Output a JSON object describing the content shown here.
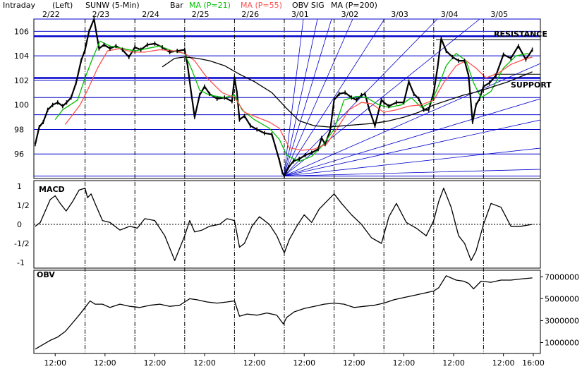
{
  "header": {
    "mode": "Intraday",
    "axis_side": "(Left)",
    "symbol": "SUNW (5-Min)",
    "style": "Bar",
    "ma21_label": "MA (P=21)",
    "ma55_label": "MA (P=55)",
    "obv_sig_label": "OBV SIG",
    "ma200_label": "MA (P=200)"
  },
  "colors": {
    "price": "#000000",
    "ma21": "#00c000",
    "ma55": "#ff5050",
    "ma200": "#000000",
    "fan_lines": "#0000cc",
    "grid": "#0000cc"
  },
  "chart_data": [
    {
      "type": "line",
      "panel": "price",
      "dates": [
        "2/22",
        "2/23",
        "2/24",
        "2/25",
        "2/26",
        "3/01",
        "3/02",
        "3/03",
        "3/04",
        "3/05"
      ],
      "time_ticks": [
        "12:00",
        "12:00",
        "12:00",
        "12:00",
        "12:00",
        "12:00",
        "12:00",
        "12:00",
        "12:00",
        "12:00",
        "16:00"
      ],
      "y_ticks": [
        "106",
        "104",
        "102",
        "100",
        "98",
        "96"
      ],
      "ylim": [
        94,
        107
      ],
      "x_days": [
        0,
        10
      ],
      "annotations": [
        {
          "text": "RESISTANCE",
          "price": 105.6
        },
        {
          "text": "SUPPORT",
          "price": 102.2
        }
      ],
      "resistance_price": 105.6,
      "support_price": 102.2,
      "fan_origin": {
        "day": 4.99,
        "price": 94.2
      },
      "series": [
        {
          "name": "SUNW",
          "x": [
            0.0,
            0.08,
            0.16,
            0.25,
            0.35,
            0.45,
            0.55,
            0.63,
            0.72,
            0.82,
            0.92,
            1.0,
            1.08,
            1.18,
            1.28,
            1.38,
            1.5,
            1.62,
            1.75,
            1.88,
            2.0,
            2.12,
            2.25,
            2.4,
            2.55,
            2.7,
            2.85,
            3.0,
            3.06,
            3.12,
            3.2,
            3.3,
            3.4,
            3.5,
            3.65,
            3.8,
            3.95,
            4.0,
            4.05,
            4.1,
            4.2,
            4.32,
            4.45,
            4.6,
            4.75,
            4.9,
            4.96,
            5.0,
            5.08,
            5.18,
            5.3,
            5.42,
            5.55,
            5.68,
            5.75,
            5.82,
            5.92,
            6.0,
            6.1,
            6.22,
            6.35,
            6.45,
            6.55,
            6.62,
            6.7,
            6.82,
            6.95,
            7.0,
            7.1,
            7.25,
            7.4,
            7.5,
            7.6,
            7.7,
            7.8,
            7.9,
            8.0,
            8.08,
            8.15,
            8.25,
            8.38,
            8.5,
            8.62,
            8.7,
            8.78,
            8.85,
            8.92,
            9.0,
            9.12,
            9.25,
            9.4,
            9.55,
            9.7,
            9.85,
            9.98
          ],
          "y": [
            96.8,
            98.2,
            98.6,
            99.6,
            100.0,
            100.2,
            99.9,
            100.2,
            100.6,
            101.8,
            103.6,
            104.5,
            106.0,
            107.0,
            104.6,
            104.9,
            104.6,
            104.8,
            104.5,
            103.9,
            104.7,
            104.5,
            104.9,
            105.0,
            104.7,
            104.3,
            104.4,
            104.5,
            103.2,
            101.3,
            99.0,
            100.8,
            101.5,
            100.9,
            100.5,
            100.6,
            100.3,
            102.2,
            101.0,
            98.8,
            99.1,
            98.3,
            98.0,
            97.7,
            97.6,
            95.5,
            94.5,
            94.2,
            94.9,
            95.4,
            95.6,
            95.9,
            96.1,
            96.4,
            97.3,
            96.8,
            97.9,
            100.4,
            100.9,
            101.0,
            100.6,
            100.4,
            100.8,
            100.9,
            99.7,
            98.3,
            100.4,
            100.2,
            99.9,
            100.2,
            100.2,
            101.9,
            100.9,
            100.5,
            99.6,
            99.6,
            101.0,
            103.1,
            105.4,
            104.4,
            103.9,
            103.6,
            103.6,
            102.4,
            98.6,
            100.0,
            100.5,
            101.5,
            101.8,
            102.4,
            104.1,
            103.8,
            104.8,
            103.7,
            104.5
          ]
        },
        {
          "name": "MA (P=21)",
          "x": [
            0.4,
            0.55,
            0.7,
            0.85,
            1.0,
            1.15,
            1.3,
            1.5,
            1.75,
            2.0,
            2.25,
            2.5,
            2.75,
            3.0,
            3.15,
            3.3,
            3.5,
            3.8,
            4.0,
            4.15,
            4.4,
            4.7,
            4.9,
            5.05,
            5.3,
            5.55,
            5.75,
            6.0,
            6.2,
            6.45,
            6.65,
            6.9,
            7.1,
            7.35,
            7.55,
            7.75,
            7.95,
            8.1,
            8.25,
            8.45,
            8.65,
            8.8,
            8.95,
            9.15,
            9.4,
            9.65,
            9.9
          ],
          "y": [
            98.8,
            99.6,
            100.0,
            100.4,
            102.2,
            103.8,
            105.2,
            104.8,
            104.6,
            104.4,
            104.6,
            104.8,
            104.4,
            104.2,
            102.8,
            101.2,
            100.8,
            100.6,
            100.8,
            99.6,
            98.8,
            98.1,
            97.2,
            95.9,
            95.4,
            95.8,
            96.6,
            98.0,
            100.4,
            100.7,
            100.6,
            100.0,
            99.8,
            100.0,
            100.6,
            99.8,
            100.2,
            101.6,
            103.2,
            104.2,
            103.6,
            101.8,
            100.6,
            101.1,
            103.0,
            104.0,
            104.2
          ]
        },
        {
          "name": "MA (P=55)",
          "x": [
            0.6,
            0.75,
            0.9,
            1.05,
            1.25,
            1.45,
            1.7,
            1.95,
            2.2,
            2.5,
            2.8,
            3.0,
            3.2,
            3.45,
            3.75,
            4.0,
            4.2,
            4.45,
            4.7,
            4.9,
            5.1,
            5.35,
            5.6,
            5.85,
            6.05,
            6.3,
            6.55,
            6.75,
            7.0,
            7.25,
            7.5,
            7.75,
            8.0,
            8.2,
            8.45,
            8.65,
            8.85,
            9.05,
            9.3,
            9.55,
            9.8,
            9.98
          ],
          "y": [
            98.4,
            99.2,
            100.0,
            101.2,
            103.0,
            104.4,
            104.6,
            104.3,
            104.3,
            104.5,
            104.4,
            104.2,
            103.6,
            102.2,
            101.0,
            100.6,
            99.4,
            99.0,
            98.6,
            98.1,
            96.5,
            96.3,
            96.4,
            96.8,
            98.0,
            99.6,
            100.2,
            100.1,
            99.4,
            99.6,
            99.9,
            100.0,
            100.4,
            101.8,
            103.2,
            103.6,
            103.0,
            102.2,
            102.6,
            103.3,
            103.7,
            103.9
          ]
        },
        {
          "name": "MA (P=200)",
          "x": [
            2.55,
            2.8,
            3.0,
            3.25,
            3.5,
            3.8,
            4.1,
            4.4,
            4.75,
            5.05,
            5.3,
            5.6,
            5.9,
            6.2,
            6.5,
            6.8,
            7.1,
            7.4,
            7.7,
            8.0,
            8.3,
            8.6,
            8.9,
            9.2,
            9.5,
            9.8,
            9.98
          ],
          "y": [
            103.1,
            103.8,
            103.9,
            103.8,
            103.6,
            103.2,
            102.5,
            101.9,
            101.0,
            99.7,
            98.7,
            98.3,
            98.2,
            98.3,
            98.4,
            98.5,
            98.7,
            99.0,
            99.4,
            100.0,
            100.4,
            100.8,
            101.1,
            101.5,
            101.9,
            102.4,
            102.7
          ]
        }
      ]
    },
    {
      "type": "line",
      "panel": "macd",
      "title": "MACD",
      "y_ticks": [
        "1",
        "1/2",
        "0",
        "-1/2",
        "-1"
      ],
      "ylim": [
        -1,
        1
      ],
      "series": [
        {
          "name": "MACD",
          "x": [
            0.0,
            0.1,
            0.2,
            0.3,
            0.4,
            0.5,
            0.62,
            0.75,
            0.88,
            1.0,
            1.05,
            1.12,
            1.2,
            1.35,
            1.5,
            1.7,
            1.9,
            2.05,
            2.2,
            2.4,
            2.6,
            2.8,
            3.0,
            3.1,
            3.2,
            3.35,
            3.5,
            3.7,
            3.85,
            4.0,
            4.1,
            4.2,
            4.35,
            4.5,
            4.7,
            4.85,
            5.0,
            5.1,
            5.25,
            5.4,
            5.55,
            5.7,
            5.85,
            6.0,
            6.15,
            6.35,
            6.55,
            6.75,
            6.95,
            7.1,
            7.25,
            7.45,
            7.65,
            7.85,
            8.0,
            8.1,
            8.2,
            8.35,
            8.5,
            8.62,
            8.75,
            8.85,
            9.0,
            9.15,
            9.35,
            9.55,
            9.75,
            9.98
          ],
          "y": [
            -0.05,
            0.05,
            0.35,
            0.65,
            0.75,
            0.55,
            0.35,
            0.6,
            0.9,
            0.95,
            0.7,
            0.8,
            0.55,
            0.1,
            0.05,
            -0.15,
            -0.05,
            -0.1,
            0.15,
            0.1,
            -0.3,
            -0.95,
            -0.3,
            0.1,
            -0.2,
            -0.15,
            -0.05,
            0.0,
            0.15,
            0.1,
            -0.6,
            -0.5,
            -0.05,
            0.2,
            0.0,
            -0.3,
            -0.75,
            -0.4,
            -0.05,
            0.25,
            0.05,
            0.4,
            0.6,
            0.8,
            0.55,
            0.25,
            0.0,
            -0.35,
            -0.5,
            0.2,
            0.55,
            0.05,
            -0.1,
            -0.3,
            0.1,
            0.6,
            0.95,
            0.45,
            -0.3,
            -0.5,
            -0.95,
            -0.7,
            0.0,
            0.55,
            0.45,
            -0.05,
            -0.05,
            0.0
          ]
        }
      ]
    },
    {
      "type": "line",
      "panel": "obv",
      "title": "OBV",
      "y_ticks": [
        "7000000",
        "5000000",
        "3000000",
        "1000000"
      ],
      "ylim": [
        0,
        7600000
      ],
      "series": [
        {
          "name": "OBV",
          "x": [
            0.0,
            0.15,
            0.3,
            0.45,
            0.6,
            0.75,
            0.88,
            1.0,
            1.1,
            1.2,
            1.35,
            1.5,
            1.7,
            1.9,
            2.1,
            2.3,
            2.5,
            2.7,
            2.9,
            3.0,
            3.1,
            3.25,
            3.45,
            3.65,
            3.85,
            4.0,
            4.1,
            4.25,
            4.45,
            4.65,
            4.85,
            4.98,
            5.05,
            5.2,
            5.4,
            5.6,
            5.8,
            6.0,
            6.2,
            6.4,
            6.6,
            6.8,
            7.0,
            7.2,
            7.4,
            7.6,
            7.8,
            8.0,
            8.1,
            8.25,
            8.45,
            8.6,
            8.7,
            8.8,
            8.95,
            9.15,
            9.35,
            9.55,
            9.75,
            9.98
          ],
          "y": [
            400000,
            800000,
            1200000,
            1500000,
            2000000,
            2800000,
            3500000,
            4200000,
            4800000,
            4500000,
            4500000,
            4200000,
            4500000,
            4300000,
            4200000,
            4400000,
            4500000,
            4300000,
            4400000,
            4700000,
            5000000,
            4900000,
            4700000,
            4600000,
            4700000,
            4800000,
            3400000,
            3600000,
            3500000,
            3700000,
            3500000,
            2700000,
            3300000,
            3800000,
            4100000,
            4300000,
            4500000,
            4600000,
            4500000,
            4200000,
            4300000,
            4400000,
            4600000,
            4900000,
            5100000,
            5300000,
            5500000,
            5700000,
            6000000,
            7100000,
            6700000,
            6600000,
            6400000,
            5900000,
            6600000,
            6500000,
            6700000,
            6700000,
            6800000,
            6900000
          ]
        }
      ]
    }
  ]
}
